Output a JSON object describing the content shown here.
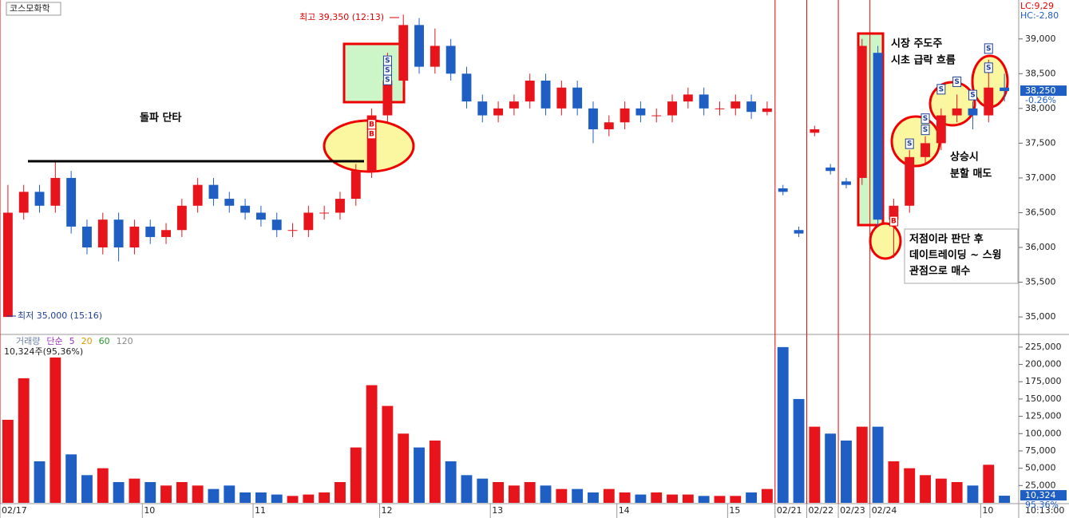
{
  "chart_data": [
    {
      "type": "candlestick",
      "title": "코스모화학",
      "lc": "LC:9,29",
      "hc": "HC:-2,80",
      "up_color": "#e8141c",
      "down_color": "#1f5fc4",
      "open": [
        35000,
        36500,
        36800,
        36600,
        37000,
        36300,
        36000,
        36400,
        36000,
        36300,
        36150,
        36250,
        36600,
        36900,
        36700,
        36600,
        36500,
        36400,
        36250,
        36250,
        36500,
        36500,
        36700,
        37100,
        37900,
        38400,
        39200,
        38600,
        38900,
        38500,
        38100,
        37900,
        38000,
        38100,
        38400,
        38000,
        38300,
        38000,
        37700,
        37800,
        38000,
        37900,
        37900,
        38100,
        38200,
        38000,
        38000,
        38100,
        37950,
        36850,
        36250,
        37650,
        37150,
        36950,
        37000,
        38800,
        36400,
        36600,
        37300,
        37500,
        37900,
        38000,
        37900,
        38300
      ],
      "high": [
        36900,
        36900,
        36900,
        37250,
        37100,
        36400,
        36500,
        36500,
        36400,
        36400,
        36350,
        36700,
        37000,
        37000,
        36800,
        36700,
        36600,
        36500,
        36350,
        36600,
        36600,
        36800,
        37200,
        38000,
        38800,
        39350,
        39300,
        39150,
        39000,
        38600,
        38200,
        38100,
        38200,
        38500,
        38500,
        38400,
        38400,
        38100,
        37900,
        38100,
        38100,
        38000,
        38200,
        38300,
        38300,
        38100,
        38200,
        38200,
        38100,
        36900,
        36300,
        37750,
        37200,
        37000,
        39000,
        38900,
        36700,
        37400,
        37600,
        38000,
        38200,
        38100,
        38700,
        38500
      ],
      "low": [
        35000,
        36400,
        36500,
        36500,
        36200,
        35900,
        35900,
        35800,
        35900,
        36050,
        36050,
        36150,
        36500,
        36600,
        36500,
        36400,
        36300,
        36150,
        36150,
        36150,
        36400,
        36400,
        36600,
        37000,
        37800,
        38300,
        38500,
        38500,
        38400,
        38000,
        37800,
        37800,
        37900,
        38000,
        37900,
        37900,
        37900,
        37500,
        37600,
        37700,
        37800,
        37800,
        37800,
        38000,
        37900,
        37900,
        37900,
        37850,
        37900,
        36750,
        36150,
        37600,
        37050,
        36850,
        36900,
        36300,
        35850,
        36500,
        37200,
        37400,
        37800,
        37700,
        37800,
        38100
      ],
      "close": [
        36500,
        36800,
        36600,
        37000,
        36300,
        36000,
        36400,
        36000,
        36300,
        36150,
        36250,
        36600,
        36900,
        36700,
        36600,
        36500,
        36400,
        36250,
        36250,
        36500,
        36500,
        36700,
        37100,
        37900,
        38400,
        39200,
        38600,
        38900,
        38500,
        38100,
        37900,
        38000,
        38100,
        38400,
        38000,
        38300,
        38000,
        37700,
        37800,
        38000,
        37900,
        37900,
        38100,
        38200,
        38000,
        38000,
        38100,
        37950,
        38000,
        36800,
        36200,
        37700,
        37100,
        36900,
        38900,
        36400,
        36600,
        37300,
        37500,
        37900,
        38000,
        37900,
        38300,
        38250
      ],
      "ylim": [
        34760,
        39560
      ],
      "yticks": [
        {
          "value": 35000,
          "label": "35,000"
        },
        {
          "value": 35500,
          "label": "35,500"
        },
        {
          "value": 36000,
          "label": "36,000"
        },
        {
          "value": 36500,
          "label": "36,500"
        },
        {
          "value": 37000,
          "label": "37,000"
        },
        {
          "value": 37500,
          "label": "37,500"
        },
        {
          "value": 38000,
          "label": "38,000"
        },
        {
          "value": 38500,
          "label": "38,500"
        },
        {
          "value": 39000,
          "label": "39,000"
        }
      ],
      "last": {
        "value": 38250,
        "label": "38,250"
      },
      "change": "-0.26%",
      "high_label": "최고 39,350 (12:13)",
      "low_label": "최저 35,000 (15:16)",
      "signals": {
        "buy": "B",
        "sell": "S"
      },
      "annotations": {
        "breakout": "돌파 단타",
        "leader": [
          "시장 주도주",
          "시초 급락 흐름"
        ],
        "sell": [
          "상승시",
          "분할 매도"
        ],
        "buy": [
          "저점이라 판단 후",
          "데이트레이딩 ~ 스윙",
          "관점으로 매수"
        ]
      }
    },
    {
      "type": "bar",
      "legend": [
        {
          "name": "거래량",
          "color": "#6a7fa6"
        },
        {
          "name": "단순",
          "color": "#9b30c0"
        },
        {
          "name": "5",
          "color": "#9b30c0"
        },
        {
          "name": "20",
          "color": "#e09a00"
        },
        {
          "name": "60",
          "color": "#2a9a2a"
        },
        {
          "name": "120",
          "color": "#888888"
        }
      ],
      "info": "10,324주(95,36%)",
      "categories": [
        "02/17",
        null,
        null,
        null,
        null,
        null,
        null,
        null,
        null,
        "10",
        null,
        null,
        null,
        null,
        null,
        null,
        "11",
        null,
        null,
        null,
        null,
        null,
        null,
        null,
        "12",
        null,
        null,
        null,
        null,
        null,
        null,
        "13",
        null,
        null,
        null,
        null,
        null,
        null,
        null,
        "14",
        null,
        null,
        null,
        null,
        null,
        null,
        "15",
        null,
        null,
        "02/21",
        null,
        "02/22",
        null,
        "02/23",
        null,
        "02/24",
        null,
        null,
        null,
        null,
        null,
        null,
        "10",
        null
      ],
      "values": [
        120000,
        180000,
        60000,
        210000,
        70000,
        40000,
        50000,
        30000,
        35000,
        30000,
        25000,
        30000,
        25000,
        20000,
        25000,
        15000,
        15000,
        12000,
        10000,
        12000,
        15000,
        30000,
        80000,
        170000,
        140000,
        100000,
        80000,
        90000,
        60000,
        40000,
        35000,
        30000,
        25000,
        30000,
        25000,
        20000,
        20000,
        15000,
        20000,
        15000,
        12000,
        15000,
        12000,
        12000,
        10000,
        10000,
        10000,
        15000,
        20000,
        225000,
        150000,
        110000,
        100000,
        90000,
        110000,
        110000,
        60000,
        50000,
        40000,
        35000,
        30000,
        25000,
        55000,
        10324
      ],
      "ylim": [
        0,
        241000
      ],
      "yticks": [
        {
          "value": 25000,
          "label": "25,000"
        },
        {
          "value": 50000,
          "label": "50,000"
        },
        {
          "value": 75000,
          "label": "75,000"
        },
        {
          "value": 100000,
          "label": "100,000"
        },
        {
          "value": 125000,
          "label": "125,000"
        },
        {
          "value": 150000,
          "label": "150,000"
        },
        {
          "value": 175000,
          "label": "175,000"
        },
        {
          "value": 200000,
          "label": "200,000"
        },
        {
          "value": 225000,
          "label": "225,000"
        }
      ],
      "last": {
        "value": 10324,
        "label": "10,324"
      },
      "ratio": "95.36%",
      "time": "10:13:00"
    }
  ]
}
